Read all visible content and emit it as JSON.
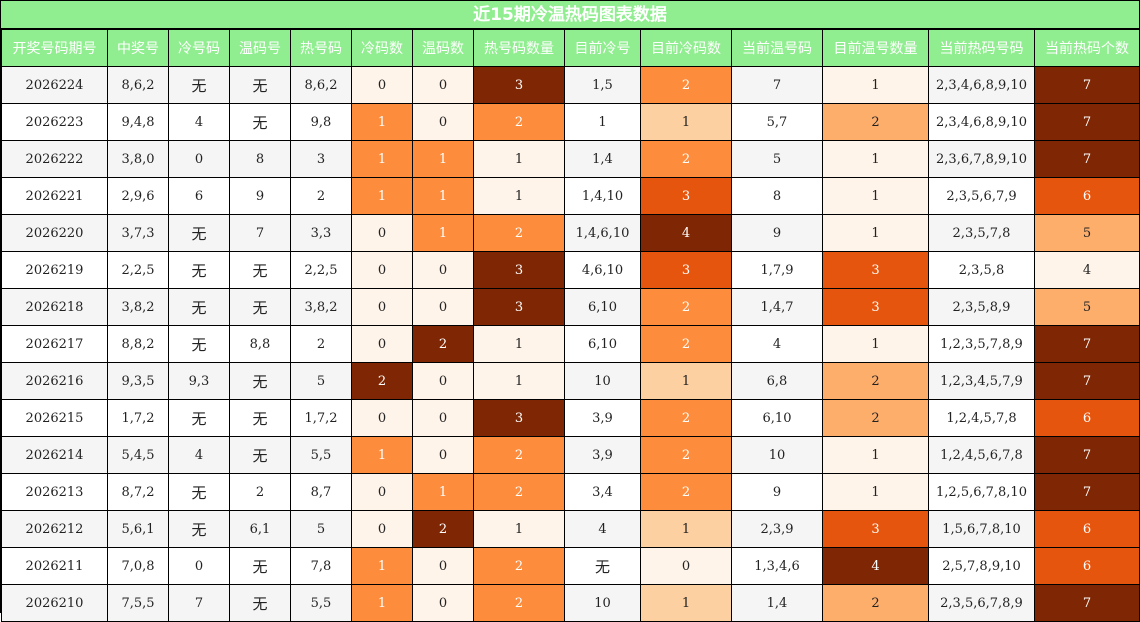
{
  "title": "近15期冷温热码图表数据",
  "headers": [
    "开奖号码期号",
    "中奖号",
    "冷号码",
    "温码号",
    "热号码",
    "冷码数",
    "温码数",
    "热号码数量",
    "目前冷号",
    "目前冷码数",
    "当前温号码",
    "目前温号数量",
    "当前热码号码",
    "当前热码个数"
  ],
  "colors": {
    "header_bg": "#90EE90",
    "heat_scale": [
      "#fff4ea",
      "#fdd0a2",
      "#fdae6b",
      "#fd8d3c",
      "#e6550d",
      "#7f2704"
    ]
  },
  "rows": [
    {
      "period": "2026224",
      "winning": "8,6,2",
      "cold": "无",
      "warm": "无",
      "hot": "8,6,2",
      "cold_count": "0",
      "warm_count": "0",
      "hot_count": "3",
      "cur_cold": "1,5",
      "cur_cold_count": "2",
      "cur_warm": "7",
      "cur_warm_count": "1",
      "cur_hot": "2,3,4,6,8,9,10",
      "cur_hot_count": "7"
    },
    {
      "period": "2026223",
      "winning": "9,4,8",
      "cold": "4",
      "warm": "无",
      "hot": "9,8",
      "cold_count": "1",
      "warm_count": "0",
      "hot_count": "2",
      "cur_cold": "1",
      "cur_cold_count": "1",
      "cur_warm": "5,7",
      "cur_warm_count": "2",
      "cur_hot": "2,3,4,6,8,9,10",
      "cur_hot_count": "7"
    },
    {
      "period": "2026222",
      "winning": "3,8,0",
      "cold": "0",
      "warm": "8",
      "hot": "3",
      "cold_count": "1",
      "warm_count": "1",
      "hot_count": "1",
      "cur_cold": "1,4",
      "cur_cold_count": "2",
      "cur_warm": "5",
      "cur_warm_count": "1",
      "cur_hot": "2,3,6,7,8,9,10",
      "cur_hot_count": "7"
    },
    {
      "period": "2026221",
      "winning": "2,9,6",
      "cold": "6",
      "warm": "9",
      "hot": "2",
      "cold_count": "1",
      "warm_count": "1",
      "hot_count": "1",
      "cur_cold": "1,4,10",
      "cur_cold_count": "3",
      "cur_warm": "8",
      "cur_warm_count": "1",
      "cur_hot": "2,3,5,6,7,9",
      "cur_hot_count": "6"
    },
    {
      "period": "2026220",
      "winning": "3,7,3",
      "cold": "无",
      "warm": "7",
      "hot": "3,3",
      "cold_count": "0",
      "warm_count": "1",
      "hot_count": "2",
      "cur_cold": "1,4,6,10",
      "cur_cold_count": "4",
      "cur_warm": "9",
      "cur_warm_count": "1",
      "cur_hot": "2,3,5,7,8",
      "cur_hot_count": "5"
    },
    {
      "period": "2026219",
      "winning": "2,2,5",
      "cold": "无",
      "warm": "无",
      "hot": "2,2,5",
      "cold_count": "0",
      "warm_count": "0",
      "hot_count": "3",
      "cur_cold": "4,6,10",
      "cur_cold_count": "3",
      "cur_warm": "1,7,9",
      "cur_warm_count": "3",
      "cur_hot": "2,3,5,8",
      "cur_hot_count": "4"
    },
    {
      "period": "2026218",
      "winning": "3,8,2",
      "cold": "无",
      "warm": "无",
      "hot": "3,8,2",
      "cold_count": "0",
      "warm_count": "0",
      "hot_count": "3",
      "cur_cold": "6,10",
      "cur_cold_count": "2",
      "cur_warm": "1,4,7",
      "cur_warm_count": "3",
      "cur_hot": "2,3,5,8,9",
      "cur_hot_count": "5"
    },
    {
      "period": "2026217",
      "winning": "8,8,2",
      "cold": "无",
      "warm": "8,8",
      "hot": "2",
      "cold_count": "0",
      "warm_count": "2",
      "hot_count": "1",
      "cur_cold": "6,10",
      "cur_cold_count": "2",
      "cur_warm": "4",
      "cur_warm_count": "1",
      "cur_hot": "1,2,3,5,7,8,9",
      "cur_hot_count": "7"
    },
    {
      "period": "2026216",
      "winning": "9,3,5",
      "cold": "9,3",
      "warm": "无",
      "hot": "5",
      "cold_count": "2",
      "warm_count": "0",
      "hot_count": "1",
      "cur_cold": "10",
      "cur_cold_count": "1",
      "cur_warm": "6,8",
      "cur_warm_count": "2",
      "cur_hot": "1,2,3,4,5,7,9",
      "cur_hot_count": "7"
    },
    {
      "period": "2026215",
      "winning": "1,7,2",
      "cold": "无",
      "warm": "无",
      "hot": "1,7,2",
      "cold_count": "0",
      "warm_count": "0",
      "hot_count": "3",
      "cur_cold": "3,9",
      "cur_cold_count": "2",
      "cur_warm": "6,10",
      "cur_warm_count": "2",
      "cur_hot": "1,2,4,5,7,8",
      "cur_hot_count": "6"
    },
    {
      "period": "2026214",
      "winning": "5,4,5",
      "cold": "4",
      "warm": "无",
      "hot": "5,5",
      "cold_count": "1",
      "warm_count": "0",
      "hot_count": "2",
      "cur_cold": "3,9",
      "cur_cold_count": "2",
      "cur_warm": "10",
      "cur_warm_count": "1",
      "cur_hot": "1,2,4,5,6,7,8",
      "cur_hot_count": "7"
    },
    {
      "period": "2026213",
      "winning": "8,7,2",
      "cold": "无",
      "warm": "2",
      "hot": "8,7",
      "cold_count": "0",
      "warm_count": "1",
      "hot_count": "2",
      "cur_cold": "3,4",
      "cur_cold_count": "2",
      "cur_warm": "9",
      "cur_warm_count": "1",
      "cur_hot": "1,2,5,6,7,8,10",
      "cur_hot_count": "7"
    },
    {
      "period": "2026212",
      "winning": "5,6,1",
      "cold": "无",
      "warm": "6,1",
      "hot": "5",
      "cold_count": "0",
      "warm_count": "2",
      "hot_count": "1",
      "cur_cold": "4",
      "cur_cold_count": "1",
      "cur_warm": "2,3,9",
      "cur_warm_count": "3",
      "cur_hot": "1,5,6,7,8,10",
      "cur_hot_count": "6"
    },
    {
      "period": "2026211",
      "winning": "7,0,8",
      "cold": "0",
      "warm": "无",
      "hot": "7,8",
      "cold_count": "1",
      "warm_count": "0",
      "hot_count": "2",
      "cur_cold": "无",
      "cur_cold_count": "0",
      "cur_warm": "1,3,4,6",
      "cur_warm_count": "4",
      "cur_hot": "2,5,7,8,9,10",
      "cur_hot_count": "6"
    },
    {
      "period": "2026210",
      "winning": "7,5,5",
      "cold": "7",
      "warm": "无",
      "hot": "5,5",
      "cold_count": "1",
      "warm_count": "0",
      "hot_count": "2",
      "cur_cold": "10",
      "cur_cold_count": "1",
      "cur_warm": "1,4",
      "cur_warm_count": "2",
      "cur_hot": "2,3,5,6,7,8,9",
      "cur_hot_count": "7"
    }
  ]
}
